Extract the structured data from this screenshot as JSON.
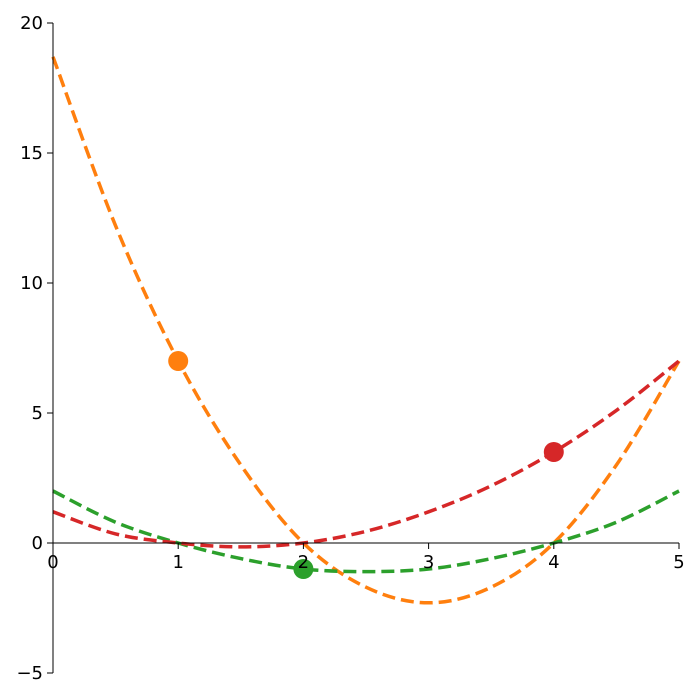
{
  "chart_data": {
    "type": "line",
    "title": "",
    "xlabel": "",
    "ylabel": "",
    "xlim": [
      0,
      5
    ],
    "ylim": [
      -5,
      20
    ],
    "xticks": [
      0,
      1,
      2,
      3,
      4,
      5
    ],
    "yticks": [
      -5,
      0,
      5,
      10,
      15,
      20
    ],
    "xtick_labels": [
      "0",
      "1",
      "2",
      "3",
      "4",
      "5"
    ],
    "ytick_labels": [
      "−5",
      "0",
      "5",
      "10",
      "15",
      "20"
    ],
    "grid": false,
    "legend": "none",
    "series": [
      {
        "color": "#ff7f0e",
        "style": "dashed",
        "x": [
          0,
          0.5,
          1,
          1.5,
          2,
          2.5,
          3,
          3.5,
          4,
          4.5,
          5
        ],
        "y": [
          18.7,
          12.2,
          7.0,
          3.0,
          0.0,
          -1.7,
          -2.3,
          -1.7,
          0.0,
          3.0,
          7.0
        ]
      },
      {
        "color": "#2ca02c",
        "style": "dashed",
        "x": [
          0,
          0.5,
          1,
          1.5,
          2,
          2.5,
          3,
          3.5,
          4,
          4.5,
          5
        ],
        "y": [
          2.0,
          0.8,
          0.0,
          -0.6,
          -1.0,
          -1.1,
          -1.0,
          -0.6,
          0.0,
          0.8,
          2.0
        ]
      },
      {
        "color": "#d62728",
        "style": "dashed",
        "x": [
          0,
          0.5,
          1,
          1.5,
          2,
          2.5,
          3,
          3.5,
          4,
          4.5,
          5
        ],
        "y": [
          1.2,
          0.35,
          0.0,
          -0.15,
          0.0,
          0.45,
          1.2,
          2.2,
          3.5,
          5.1,
          7.0
        ]
      }
    ],
    "points": [
      {
        "x": 1,
        "y": 7.0,
        "color": "#ff7f0e"
      },
      {
        "x": 2,
        "y": -1.0,
        "color": "#2ca02c"
      },
      {
        "x": 4,
        "y": 3.5,
        "color": "#d62728"
      }
    ]
  }
}
